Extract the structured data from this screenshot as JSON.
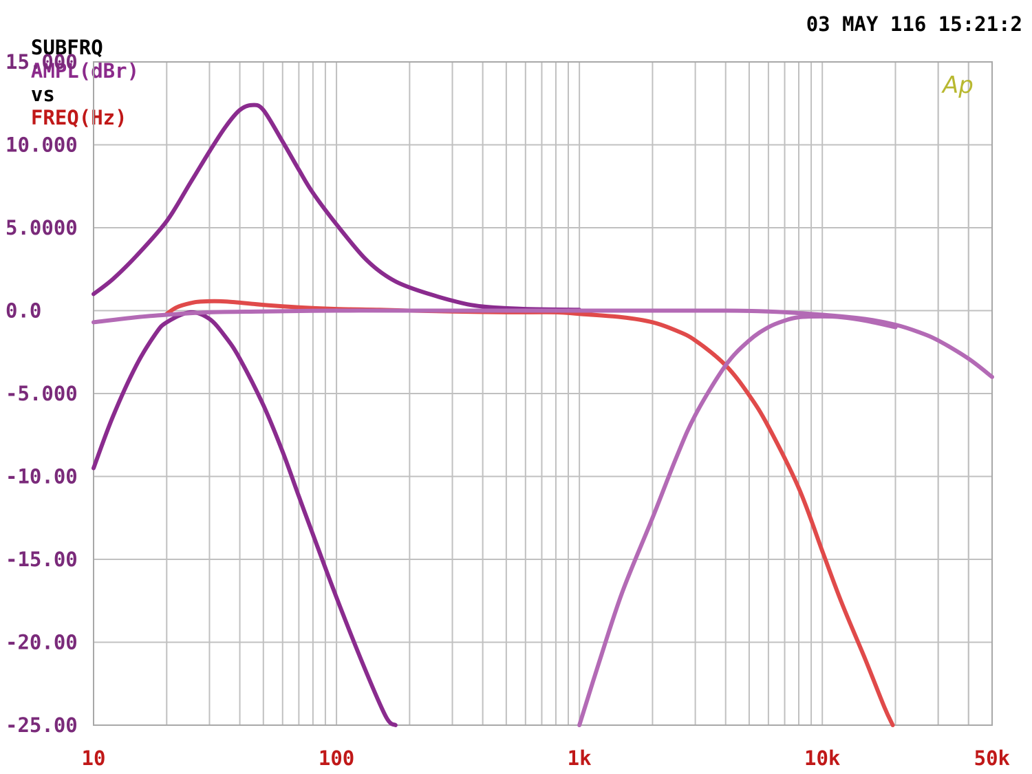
{
  "header": {
    "program": "SUBFRQ",
    "y_quantity": "AMPL(dBr)",
    "vs": "vs",
    "x_quantity": "FREQ(Hz)",
    "timestamp": "03 MAY 116 15:21:2"
  },
  "logo": "Ap",
  "colors": {
    "program": "#000000",
    "y_quantity": "#8b2a8b",
    "x_quantity": "#c01818",
    "axis_text_y": "#7a2a7a",
    "axis_text_x": "#c01818",
    "grid": "#c0c0c0",
    "frame": "#a8a8a8",
    "logo": "#b8b830"
  },
  "chart_data": {
    "type": "line",
    "x_scale": "log",
    "xlim": [
      10,
      50000
    ],
    "ylim": [
      -25,
      15
    ],
    "grid": true,
    "y_ticks": [
      {
        "value": 15,
        "label": "15.000"
      },
      {
        "value": 10,
        "label": "10.000"
      },
      {
        "value": 5,
        "label": "5.0000"
      },
      {
        "value": 0,
        "label": "0.0"
      },
      {
        "value": -5,
        "label": "-5.000"
      },
      {
        "value": -10,
        "label": "-10.00"
      },
      {
        "value": -15,
        "label": "-15.00"
      },
      {
        "value": -20,
        "label": "-20.00"
      },
      {
        "value": -25,
        "label": "-25.00"
      }
    ],
    "x_ticks": [
      {
        "value": 10,
        "label": "10"
      },
      {
        "value": 100,
        "label": "100"
      },
      {
        "value": 1000,
        "label": "1k"
      },
      {
        "value": 10000,
        "label": "10k"
      },
      {
        "value": 50000,
        "label": "50k"
      }
    ],
    "series": [
      {
        "color": "#8a2b8e",
        "x": [
          10,
          12,
          15,
          20,
          25,
          30,
          35,
          40,
          45,
          50,
          60,
          70,
          80,
          100,
          130,
          160,
          200,
          300,
          400,
          600,
          1000
        ],
        "y": [
          1.0,
          1.9,
          3.3,
          5.4,
          7.7,
          9.6,
          11.1,
          12.1,
          12.4,
          12.1,
          10.2,
          8.5,
          7.1,
          5.2,
          3.2,
          2.1,
          1.4,
          0.6,
          0.25,
          0.1,
          0.05
        ]
      },
      {
        "color": "#8a2b8e",
        "x": [
          10,
          12,
          15,
          18,
          20,
          25,
          30,
          35,
          40,
          50,
          60,
          70,
          80,
          100,
          130,
          160,
          175
        ],
        "y": [
          -9.5,
          -6.4,
          -3.3,
          -1.4,
          -0.7,
          -0.1,
          -0.5,
          -1.6,
          -2.9,
          -5.7,
          -8.5,
          -11.2,
          -13.5,
          -17.3,
          -21.5,
          -24.5,
          -25.0
        ]
      },
      {
        "color": "#e04a4a",
        "x": [
          20,
          22,
          25,
          28,
          35,
          50,
          70,
          100,
          150,
          200,
          300,
          500,
          800,
          1000,
          1500,
          2000,
          2500,
          3000,
          4000,
          5000,
          6000,
          8000,
          10000,
          12000,
          15000,
          18000,
          19500
        ],
        "y": [
          -0.2,
          0.2,
          0.45,
          0.55,
          0.55,
          0.35,
          0.2,
          0.1,
          0.05,
          0.0,
          -0.05,
          -0.1,
          -0.1,
          -0.2,
          -0.4,
          -0.7,
          -1.2,
          -1.8,
          -3.3,
          -5.1,
          -7.0,
          -10.7,
          -14.5,
          -17.6,
          -21.0,
          -23.9,
          -25.0
        ]
      },
      {
        "color": "#b36ab5",
        "x": [
          10,
          15,
          20,
          30,
          50,
          100,
          200,
          500,
          1000,
          2000,
          4000,
          6000,
          8000,
          10000,
          15000,
          20000,
          25000,
          30000,
          40000,
          50000
        ],
        "y": [
          -0.7,
          -0.4,
          -0.25,
          -0.1,
          -0.05,
          0.0,
          0.0,
          0.0,
          0.0,
          0.0,
          0.0,
          -0.05,
          -0.15,
          -0.25,
          -0.5,
          -0.85,
          -1.3,
          -1.8,
          -2.9,
          -4.0
        ]
      },
      {
        "color": "#b36ab5",
        "x": [
          1000,
          1200,
          1500,
          2000,
          2500,
          3000,
          4000,
          5000,
          6000,
          7000,
          8000,
          10000,
          12000,
          15000,
          20000
        ],
        "y": [
          -25.0,
          -21.3,
          -17.0,
          -12.5,
          -8.9,
          -6.3,
          -3.3,
          -1.8,
          -1.0,
          -0.6,
          -0.4,
          -0.35,
          -0.4,
          -0.6,
          -1.0
        ]
      }
    ]
  }
}
